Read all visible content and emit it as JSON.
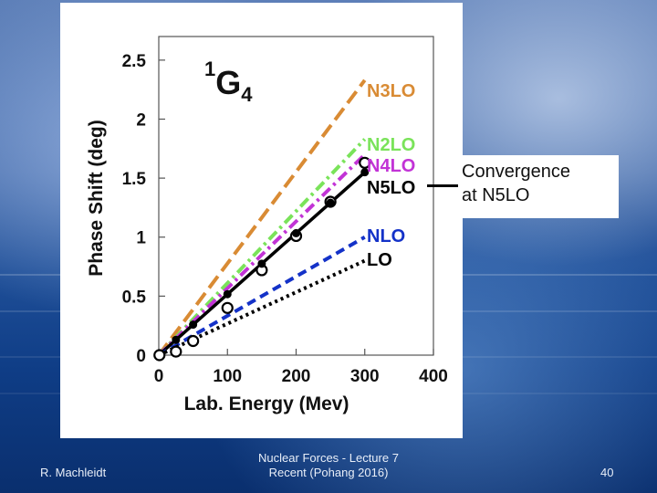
{
  "chart_data": {
    "type": "line",
    "title_main": "1",
    "title_letter": "G",
    "title_sub": "4",
    "xlabel": "Lab. Energy (Mev)",
    "ylabel": "Phase Shift (deg)",
    "xlim": [
      0,
      400
    ],
    "ylim": [
      0,
      2.7
    ],
    "xticks": [
      0,
      100,
      200,
      300,
      400
    ],
    "xtick_labels": [
      "0",
      "100",
      "200",
      "300",
      "400"
    ],
    "yticks": [
      0,
      0.5,
      1,
      1.5,
      2,
      2.5
    ],
    "ytick_labels": [
      "0",
      "0.5",
      "1",
      "1.5",
      "2",
      "2.5"
    ],
    "series": [
      {
        "name": "N3LO",
        "color": "#d98b34",
        "style": "long-dash",
        "x": [
          0,
          300
        ],
        "y": [
          0,
          2.33
        ]
      },
      {
        "name": "N2LO",
        "color": "#7ae35a",
        "style": "dash-dot",
        "x": [
          0,
          300
        ],
        "y": [
          0,
          1.83
        ]
      },
      {
        "name": "N4LO",
        "color": "#c233d6",
        "style": "dash-dot",
        "x": [
          0,
          300
        ],
        "y": [
          0,
          1.7
        ]
      },
      {
        "name": "N5LO",
        "color": "#000000",
        "style": "solid",
        "x": [
          0,
          300
        ],
        "y": [
          0,
          1.55
        ]
      },
      {
        "name": "NLO",
        "color": "#1432c8",
        "style": "dash",
        "x": [
          0,
          300
        ],
        "y": [
          0,
          1.0
        ]
      },
      {
        "name": "LO",
        "color": "#000000",
        "style": "dot",
        "x": [
          0,
          300
        ],
        "y": [
          0,
          0.8
        ]
      }
    ],
    "data_points": {
      "x": [
        1,
        25,
        50,
        100,
        150,
        200,
        250,
        300
      ],
      "y": [
        0.0,
        0.03,
        0.12,
        0.4,
        0.72,
        1.01,
        1.3,
        1.63
      ]
    }
  },
  "callout": {
    "line1": "Convergence",
    "line2": "at N5LO"
  },
  "footer": {
    "author": "R. Machleidt",
    "center_line1": "Nuclear Forces - Lecture 7",
    "center_line2": "Recent  (Pohang 2016)",
    "page_number": "40"
  }
}
